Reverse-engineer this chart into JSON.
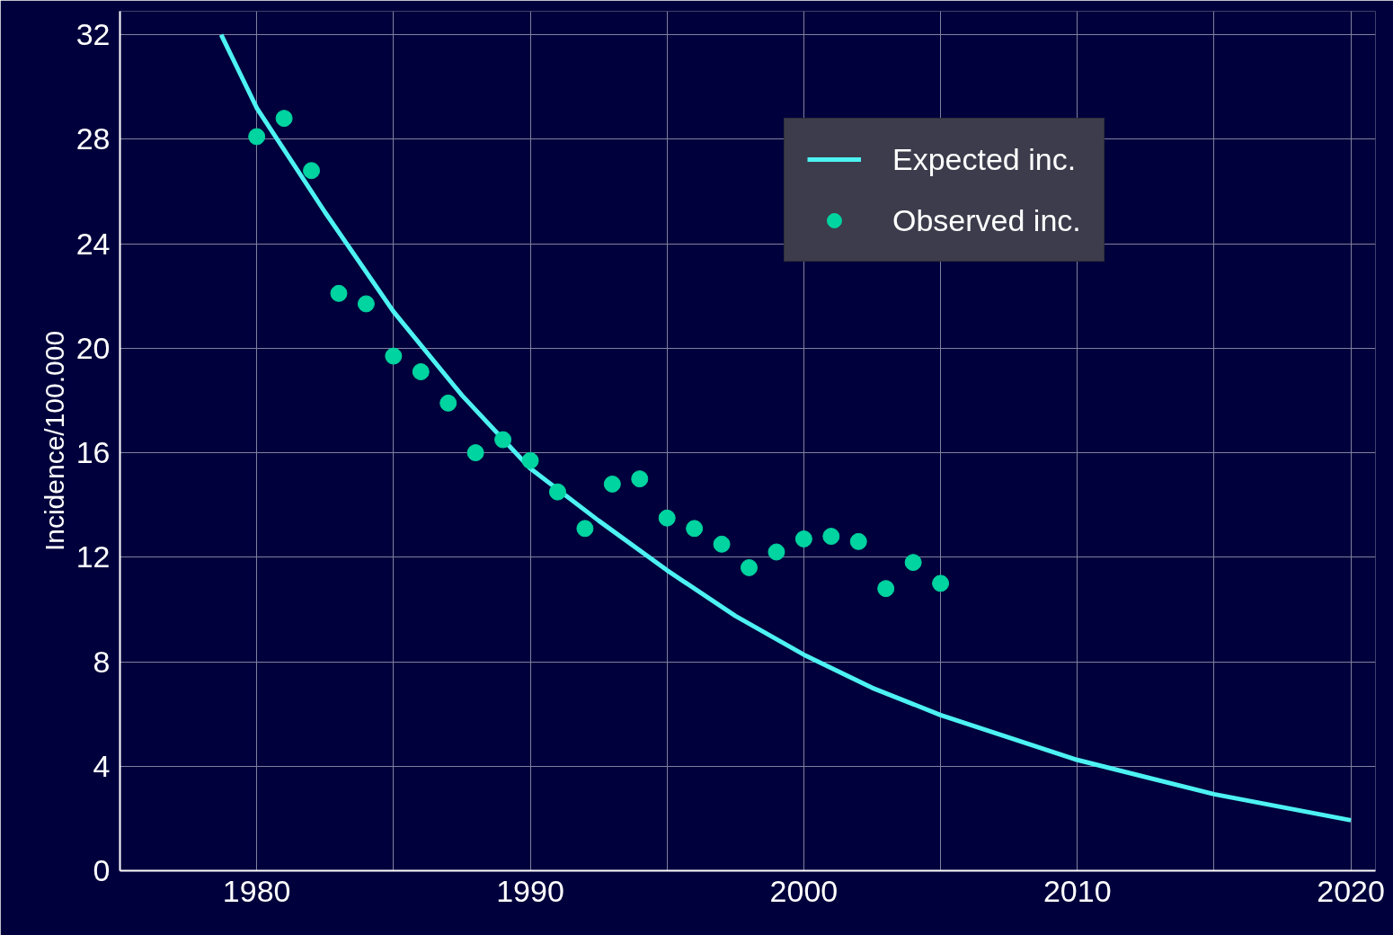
{
  "chart_data": {
    "type": "scatter",
    "ylabel": "Incidence/100.000",
    "xlim": [
      1975,
      2020.9
    ],
    "ylim": [
      0,
      32.9
    ],
    "xticks": [
      {
        "value": 1975,
        "label": null
      },
      1980,
      {
        "value": 1985,
        "label": null
      },
      1990,
      {
        "value": 1995,
        "label": null
      },
      2000,
      {
        "value": 2005,
        "label": null
      },
      2010,
      {
        "value": 2015,
        "label": null
      },
      2020
    ],
    "yticks": [
      0,
      4,
      8,
      12,
      16,
      20,
      24,
      28,
      32
    ],
    "grid": true,
    "legend": "top right",
    "series": [
      {
        "name": "Expected inc.",
        "type": "line",
        "color": "#4df2f2",
        "line_style": "solid",
        "marker": "none",
        "x": [
          1978.7,
          1980,
          1982.5,
          1985,
          1987.5,
          1990,
          1992.5,
          1995,
          1997.5,
          2000,
          2002.5,
          2005,
          2010,
          2015,
          2020
        ],
        "values": [
          32.0,
          29.2,
          25.2,
          21.4,
          18.2,
          15.4,
          13.4,
          11.5,
          9.75,
          8.27,
          7.0,
          5.96,
          4.24,
          2.93,
          1.93
        ]
      },
      {
        "name": "Observed inc.",
        "color": "#00d4a0",
        "marker": "circle",
        "x": [
          1980,
          1981,
          1982,
          1983,
          1984,
          1985,
          1986,
          1987,
          1988,
          1989,
          1990,
          1991,
          1992,
          1993,
          1994,
          1995,
          1996,
          1997,
          1998,
          1999,
          2000,
          2001,
          2002,
          2003,
          2004,
          2005
        ],
        "values": [
          28.1,
          28.8,
          26.8,
          22.1,
          21.7,
          19.7,
          19.1,
          17.9,
          16.0,
          16.5,
          15.7,
          14.5,
          13.1,
          14.8,
          15.0,
          13.5,
          13.1,
          12.5,
          11.6,
          12.2,
          12.7,
          12.8,
          12.6,
          10.8,
          11.8,
          11.0
        ]
      }
    ]
  }
}
